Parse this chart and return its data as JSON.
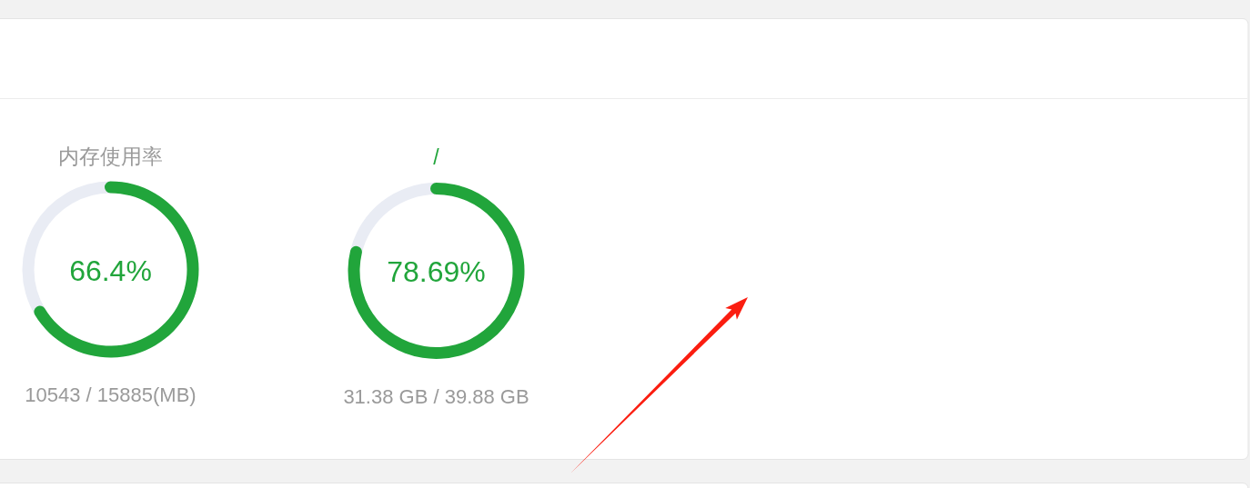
{
  "chart_data": [
    {
      "type": "donut",
      "title": "内存使用率",
      "categories": [
        null,
        null
      ],
      "values": [
        66.4,
        33.6
      ],
      "colors": [
        "#21a53b",
        "#e9ecf4"
      ],
      "value_labels": [
        "66.4%",
        null
      ],
      "annotations": [
        "10543 / 15885(MB)"
      ]
    },
    {
      "type": "donut",
      "title": "/",
      "categories": [
        null,
        null
      ],
      "values": [
        78.69,
        21.31
      ],
      "colors": [
        "#21a53b",
        "#e9ecf4"
      ],
      "value_labels": [
        "78.69%",
        null
      ],
      "annotations": [
        "31.38 GB / 39.88 GB"
      ]
    }
  ]
}
